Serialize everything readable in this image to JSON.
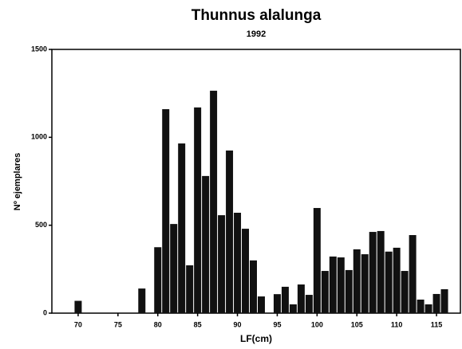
{
  "chart_data": {
    "type": "bar",
    "title": "Thunnus alalunga",
    "subtitle": "1992",
    "x_label": "LF(cm)",
    "y_label": "Nº ejemplares",
    "x": [
      70,
      78,
      80,
      81,
      82,
      83,
      84,
      85,
      86,
      87,
      88,
      89,
      90,
      91,
      92,
      93,
      95,
      96,
      97,
      98,
      99,
      100,
      101,
      102,
      103,
      104,
      105,
      106,
      107,
      108,
      109,
      110,
      111,
      112,
      113,
      114,
      115,
      116
    ],
    "values": [
      70,
      140,
      375,
      1160,
      507,
      965,
      272,
      1170,
      780,
      1265,
      557,
      925,
      571,
      480,
      300,
      95,
      108,
      150,
      50,
      163,
      104,
      598,
      240,
      322,
      317,
      245,
      363,
      335,
      462,
      467,
      350,
      372,
      240,
      444,
      77,
      50,
      109,
      136
    ],
    "color": "#111111",
    "xlim": [
      66.7,
      118
    ],
    "ylim": [
      0,
      1500
    ],
    "xticks": [
      70,
      75,
      80,
      85,
      90,
      95,
      100,
      105,
      110,
      115
    ],
    "yticks": [
      0,
      500,
      1000,
      1500
    ]
  }
}
